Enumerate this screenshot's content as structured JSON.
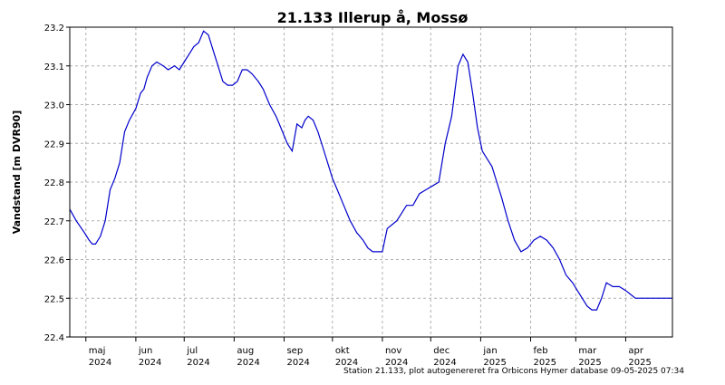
{
  "chart_data": {
    "type": "line",
    "title": "21.133  Illerup å, Mossø",
    "ylabel": "Vandstand [m DVR90]",
    "footer": "Station 21.133, plot autogenereret fra Orbicons Hymer database 09-05-2025 07:34",
    "ylim": [
      22.4,
      23.2
    ],
    "yticks": [
      "22.4",
      "22.5",
      "22.6",
      "22.7",
      "22.8",
      "22.9",
      "23.0",
      "23.1",
      "23.2"
    ],
    "xlim": [
      "2024-04-21",
      "2025-04-30"
    ],
    "month_ticks": [
      "2024-05-01",
      "2024-06-01",
      "2024-07-01",
      "2024-08-01",
      "2024-09-01",
      "2024-10-01",
      "2024-11-01",
      "2024-12-01",
      "2025-01-01",
      "2025-02-01",
      "2025-03-01",
      "2025-04-01"
    ],
    "month_labels": [
      {
        "month": "maj",
        "year": "2024"
      },
      {
        "month": "jun",
        "year": "2024"
      },
      {
        "month": "jul",
        "year": "2024"
      },
      {
        "month": "aug",
        "year": "2024"
      },
      {
        "month": "sep",
        "year": "2024"
      },
      {
        "month": "okt",
        "year": "2024"
      },
      {
        "month": "nov",
        "year": "2024"
      },
      {
        "month": "dec",
        "year": "2024"
      },
      {
        "month": "jan",
        "year": "2025"
      },
      {
        "month": "feb",
        "year": "2025"
      },
      {
        "month": "mar",
        "year": "2025"
      },
      {
        "month": "apr",
        "year": "2025"
      }
    ],
    "grid": true,
    "line_color": "#0000cc",
    "series": [
      {
        "x": [
          "2024-04-21",
          "2024-04-25",
          "2024-04-30",
          "2024-05-03",
          "2024-05-05",
          "2024-05-07",
          "2024-05-10",
          "2024-05-13",
          "2024-05-16",
          "2024-05-19",
          "2024-05-22",
          "2024-05-25",
          "2024-05-28",
          "2024-06-01",
          "2024-06-04",
          "2024-06-06",
          "2024-06-08",
          "2024-06-11",
          "2024-06-14",
          "2024-06-18",
          "2024-06-21",
          "2024-06-25",
          "2024-06-28",
          "2024-07-01",
          "2024-07-04",
          "2024-07-07",
          "2024-07-10",
          "2024-07-13",
          "2024-07-16",
          "2024-07-19",
          "2024-07-22",
          "2024-07-25",
          "2024-07-28",
          "2024-07-31",
          "2024-08-03",
          "2024-08-06",
          "2024-08-09",
          "2024-08-12",
          "2024-08-16",
          "2024-08-19",
          "2024-08-23",
          "2024-08-27",
          "2024-08-31",
          "2024-09-03",
          "2024-09-06",
          "2024-09-09",
          "2024-09-12",
          "2024-09-14",
          "2024-09-16",
          "2024-09-19",
          "2024-09-22",
          "2024-09-25",
          "2024-09-28",
          "2024-10-01",
          "2024-10-04",
          "2024-10-08",
          "2024-10-12",
          "2024-10-16",
          "2024-10-20",
          "2024-10-23",
          "2024-10-26",
          "2024-10-29",
          "2024-11-01",
          "2024-11-04",
          "2024-11-07",
          "2024-11-10",
          "2024-11-13",
          "2024-11-16",
          "2024-11-20",
          "2024-11-24",
          "2024-11-28",
          "2024-12-02",
          "2024-12-06",
          "2024-12-10",
          "2024-12-14",
          "2024-12-18",
          "2024-12-21",
          "2024-12-24",
          "2024-12-27",
          "2024-12-30",
          "2025-01-02",
          "2025-01-05",
          "2025-01-08",
          "2025-01-11",
          "2025-01-14",
          "2025-01-18",
          "2025-01-22",
          "2025-01-26",
          "2025-01-30",
          "2025-02-03",
          "2025-02-07",
          "2025-02-11",
          "2025-02-15",
          "2025-02-19",
          "2025-02-23",
          "2025-02-27",
          "2025-03-02",
          "2025-03-05",
          "2025-03-08",
          "2025-03-11",
          "2025-03-14",
          "2025-03-17",
          "2025-03-20",
          "2025-03-24",
          "2025-03-28",
          "2025-04-01",
          "2025-04-04",
          "2025-04-07",
          "2025-04-10",
          "2025-04-14",
          "2025-04-18",
          "2025-04-22",
          "2025-04-26",
          "2025-04-30"
        ],
        "y": [
          22.73,
          22.7,
          22.67,
          22.65,
          22.64,
          22.64,
          22.66,
          22.7,
          22.78,
          22.81,
          22.85,
          22.93,
          22.96,
          22.99,
          23.03,
          23.04,
          23.07,
          23.1,
          23.11,
          23.1,
          23.09,
          23.1,
          23.09,
          23.11,
          23.13,
          23.15,
          23.16,
          23.19,
          23.18,
          23.14,
          23.1,
          23.06,
          23.05,
          23.05,
          23.06,
          23.09,
          23.09,
          23.08,
          23.06,
          23.04,
          23.0,
          22.97,
          22.93,
          22.9,
          22.88,
          22.95,
          22.94,
          22.96,
          22.97,
          22.96,
          22.93,
          22.89,
          22.85,
          22.81,
          22.78,
          22.74,
          22.7,
          22.67,
          22.65,
          22.63,
          22.62,
          22.62,
          22.62,
          22.68,
          22.69,
          22.7,
          22.72,
          22.74,
          22.74,
          22.77,
          22.78,
          22.79,
          22.8,
          22.9,
          22.97,
          23.1,
          23.13,
          23.11,
          23.03,
          22.94,
          22.88,
          22.86,
          22.84,
          22.8,
          22.76,
          22.7,
          22.65,
          22.62,
          22.63,
          22.65,
          22.66,
          22.65,
          22.63,
          22.6,
          22.56,
          22.54,
          22.52,
          22.5,
          22.48,
          22.47,
          22.47,
          22.5,
          22.54,
          22.53,
          22.53,
          22.52,
          22.51,
          22.5,
          22.5,
          22.5,
          22.5,
          22.5,
          22.5,
          22.5
        ]
      }
    ]
  }
}
